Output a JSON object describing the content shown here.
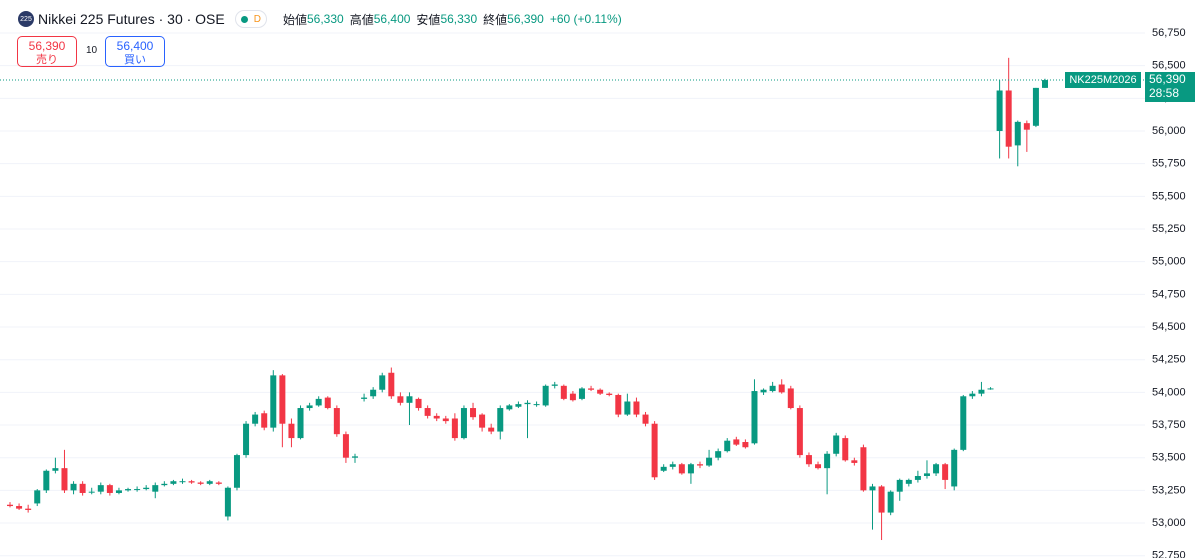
{
  "chart_data": {
    "type": "candlestick",
    "symbol_badge": "225",
    "title": "Nikkei 225 Futures · 30 · OSE",
    "interval_badge": "D",
    "header": {
      "open_label": "始値",
      "open": "56,330",
      "high_label": "高値",
      "high": "56,400",
      "low_label": "安値",
      "low": "56,330",
      "close_label": "終値",
      "close": "56,390",
      "change": "+60 (+0.11%)"
    },
    "sell": {
      "price": "56,390",
      "label": "売り"
    },
    "quantity": "10",
    "buy": {
      "price": "56,400",
      "label": "買い"
    },
    "price_tag": {
      "symbol": "NK225M2026",
      "price": "56,390",
      "countdown": "28:58"
    },
    "up_color": "#089981",
    "down_color": "#f23645",
    "ylim": [
      52750,
      56750
    ],
    "yticks": [
      {
        "value": 56750,
        "label": "56,750"
      },
      {
        "value": 56500,
        "label": "56,500"
      },
      {
        "value": 56250,
        "label": "56,250"
      },
      {
        "value": 56000,
        "label": "56,000"
      },
      {
        "value": 55750,
        "label": "55,750"
      },
      {
        "value": 55500,
        "label": "55,500"
      },
      {
        "value": 55250,
        "label": "55,250"
      },
      {
        "value": 55000,
        "label": "55,000"
      },
      {
        "value": 54750,
        "label": "54,750"
      },
      {
        "value": 54500,
        "label": "54,500"
      },
      {
        "value": 54250,
        "label": "54,250"
      },
      {
        "value": 54000,
        "label": "54,000"
      },
      {
        "value": 53750,
        "label": "53,750"
      },
      {
        "value": 53500,
        "label": "53,500"
      },
      {
        "value": 53250,
        "label": "53,250"
      },
      {
        "value": 53000,
        "label": "53,000"
      },
      {
        "value": 52750,
        "label": "52,750"
      }
    ],
    "grid": true,
    "ohlc": [
      [
        53140,
        53160,
        53120,
        53130
      ],
      [
        53130,
        53150,
        53100,
        53110
      ],
      [
        53110,
        53140,
        53080,
        53100
      ],
      [
        53150,
        53260,
        53130,
        53250
      ],
      [
        53250,
        53410,
        53230,
        53400
      ],
      [
        53400,
        53500,
        53380,
        53420
      ],
      [
        53420,
        53560,
        53230,
        53250
      ],
      [
        53250,
        53320,
        53220,
        53300
      ],
      [
        53300,
        53320,
        53210,
        53230
      ],
      [
        53240,
        53270,
        53220,
        53240
      ],
      [
        53240,
        53310,
        53220,
        53290
      ],
      [
        53290,
        53300,
        53210,
        53230
      ],
      [
        53230,
        53270,
        53220,
        53250
      ],
      [
        53250,
        53270,
        53240,
        53260
      ],
      [
        53260,
        53280,
        53240,
        53260
      ],
      [
        53260,
        53290,
        53250,
        53270
      ],
      [
        53240,
        53310,
        53190,
        53290
      ],
      [
        53290,
        53320,
        53280,
        53300
      ],
      [
        53300,
        53330,
        53290,
        53320
      ],
      [
        53320,
        53340,
        53300,
        53320
      ],
      [
        53320,
        53330,
        53300,
        53310
      ],
      [
        53310,
        53320,
        53290,
        53300
      ],
      [
        53300,
        53330,
        53290,
        53320
      ],
      [
        53310,
        53320,
        53290,
        53300
      ],
      [
        53050,
        53280,
        53020,
        53270
      ],
      [
        53270,
        53530,
        53250,
        53520
      ],
      [
        53520,
        53780,
        53500,
        53760
      ],
      [
        53760,
        53850,
        53740,
        53830
      ],
      [
        53840,
        53860,
        53710,
        53730
      ],
      [
        53730,
        54170,
        53700,
        54130
      ],
      [
        54130,
        54140,
        53580,
        53760
      ],
      [
        53760,
        53800,
        53580,
        53650
      ],
      [
        53650,
        53900,
        53640,
        53880
      ],
      [
        53880,
        53920,
        53860,
        53900
      ],
      [
        53900,
        53970,
        53890,
        53950
      ],
      [
        53960,
        53970,
        53870,
        53880
      ],
      [
        53880,
        53900,
        53660,
        53680
      ],
      [
        53680,
        53700,
        53460,
        53500
      ],
      [
        53500,
        53530,
        53460,
        53510
      ],
      [
        53950,
        53990,
        53930,
        53960
      ],
      [
        53970,
        54040,
        53950,
        54020
      ],
      [
        54020,
        54150,
        54000,
        54130
      ],
      [
        54150,
        54190,
        53950,
        53970
      ],
      [
        53970,
        54000,
        53900,
        53920
      ],
      [
        53920,
        54000,
        53750,
        53970
      ],
      [
        53950,
        53960,
        53860,
        53880
      ],
      [
        53880,
        53900,
        53800,
        53820
      ],
      [
        53820,
        53840,
        53780,
        53800
      ],
      [
        53800,
        53820,
        53760,
        53780
      ],
      [
        53800,
        53840,
        53630,
        53650
      ],
      [
        53650,
        53900,
        53640,
        53880
      ],
      [
        53880,
        53920,
        53790,
        53810
      ],
      [
        53830,
        53840,
        53700,
        53730
      ],
      [
        53730,
        53760,
        53680,
        53700
      ],
      [
        53700,
        53900,
        53640,
        53880
      ],
      [
        53870,
        53910,
        53860,
        53900
      ],
      [
        53890,
        53930,
        53880,
        53910
      ],
      [
        53910,
        53940,
        53650,
        53920
      ],
      [
        53910,
        53930,
        53890,
        53910
      ],
      [
        53900,
        54060,
        53890,
        54050
      ],
      [
        54050,
        54080,
        54030,
        54060
      ],
      [
        54050,
        54060,
        53940,
        53950
      ],
      [
        53990,
        54010,
        53930,
        53940
      ],
      [
        53950,
        54040,
        53940,
        54030
      ],
      [
        54030,
        54050,
        54010,
        54020
      ],
      [
        54020,
        54030,
        53980,
        53990
      ],
      [
        53990,
        54000,
        53970,
        53980
      ],
      [
        53980,
        53990,
        53810,
        53830
      ],
      [
        53830,
        53990,
        53820,
        53930
      ],
      [
        53930,
        53960,
        53810,
        53830
      ],
      [
        53830,
        53850,
        53740,
        53760
      ],
      [
        53760,
        53780,
        53330,
        53350
      ],
      [
        53400,
        53450,
        53390,
        53430
      ],
      [
        53430,
        53470,
        53410,
        53450
      ],
      [
        53450,
        53460,
        53370,
        53380
      ],
      [
        53380,
        53460,
        53300,
        53450
      ],
      [
        53450,
        53470,
        53420,
        53440
      ],
      [
        53440,
        53560,
        53430,
        53500
      ],
      [
        53500,
        53570,
        53480,
        53550
      ],
      [
        53550,
        53650,
        53540,
        53630
      ],
      [
        53640,
        53660,
        53590,
        53600
      ],
      [
        53620,
        53640,
        53570,
        53580
      ],
      [
        53610,
        54100,
        53600,
        54010
      ],
      [
        54000,
        54030,
        53980,
        54020
      ],
      [
        54010,
        54080,
        54000,
        54050
      ],
      [
        54060,
        54100,
        53990,
        54000
      ],
      [
        54030,
        54050,
        53870,
        53880
      ],
      [
        53880,
        53900,
        53500,
        53520
      ],
      [
        53520,
        53540,
        53430,
        53450
      ],
      [
        53450,
        53470,
        53410,
        53420
      ],
      [
        53420,
        53550,
        53220,
        53530
      ],
      [
        53530,
        53690,
        53510,
        53670
      ],
      [
        53650,
        53670,
        53470,
        53480
      ],
      [
        53480,
        53500,
        53440,
        53460
      ],
      [
        53580,
        53600,
        53240,
        53250
      ],
      [
        53250,
        53300,
        52950,
        53280
      ],
      [
        53280,
        53290,
        52870,
        53080
      ],
      [
        53080,
        53250,
        53060,
        53240
      ],
      [
        53240,
        53340,
        53170,
        53330
      ],
      [
        53300,
        53340,
        53280,
        53330
      ],
      [
        53330,
        53400,
        53310,
        53360
      ],
      [
        53360,
        53480,
        53340,
        53380
      ],
      [
        53380,
        53460,
        53360,
        53450
      ],
      [
        53450,
        53460,
        53260,
        53330
      ],
      [
        53280,
        53570,
        53250,
        53560
      ],
      [
        53560,
        53980,
        53550,
        53970
      ],
      [
        53970,
        54010,
        53950,
        53990
      ],
      [
        53990,
        54080,
        53970,
        54020
      ],
      [
        54030,
        54040,
        54020,
        54030
      ],
      [
        56000,
        56390,
        55790,
        56310
      ],
      [
        56310,
        56560,
        55790,
        55880
      ],
      [
        55890,
        56080,
        55730,
        56070
      ],
      [
        56060,
        56080,
        55840,
        56010
      ],
      [
        56040,
        56330,
        56030,
        56330
      ],
      [
        56330,
        56400,
        56330,
        56390
      ]
    ]
  }
}
